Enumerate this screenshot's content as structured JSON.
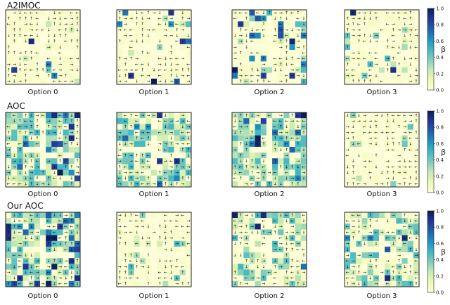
{
  "figure": {
    "rows": [
      {
        "title": "A2IMOC",
        "panels": [
          {
            "label": "Option 0",
            "seed": 11,
            "density": 0.05,
            "dark": 0.35
          },
          {
            "label": "Option 1",
            "seed": 23,
            "density": 0.1,
            "dark": 0.45
          },
          {
            "label": "Option 2",
            "seed": 37,
            "density": 0.2,
            "dark": 0.55
          },
          {
            "label": "Option 3",
            "seed": 41,
            "density": 0.08,
            "dark": 0.15
          }
        ]
      },
      {
        "title": "AOC",
        "panels": [
          {
            "label": "Option 0",
            "seed": 53,
            "density": 0.75,
            "dark": 0.15
          },
          {
            "label": "Option 1",
            "seed": 61,
            "density": 0.7,
            "dark": 0.05
          },
          {
            "label": "Option 2",
            "seed": 71,
            "density": 0.78,
            "dark": 0.1
          },
          {
            "label": "Option 3",
            "seed": 83,
            "density": 0.03,
            "dark": 0.0
          }
        ]
      },
      {
        "title": "Our AOC",
        "panels": [
          {
            "label": "Option 0",
            "seed": 97,
            "density": 0.7,
            "dark": 0.22
          },
          {
            "label": "Option 1",
            "seed": 101,
            "density": 0.15,
            "dark": 0.0
          },
          {
            "label": "Option 2",
            "seed": 113,
            "density": 0.45,
            "dark": 0.08
          },
          {
            "label": "Option 3",
            "seed": 127,
            "density": 0.5,
            "dark": 0.1
          }
        ]
      }
    ]
  },
  "colorbar": {
    "label": "β",
    "ticks": [
      "0.0",
      "0.2",
      "0.4",
      "0.6",
      "0.8",
      "1.0"
    ],
    "colors": [
      "#ffffd9",
      "#edf8b1",
      "#c7e9b4",
      "#7fcdbb",
      "#41b6c4",
      "#1d91c0",
      "#225ea8",
      "#253494",
      "#081d58"
    ]
  },
  "chart_data": {
    "type": "heatmap",
    "title": "",
    "rows": [
      "A2IMOC",
      "AOC",
      "Our AOC"
    ],
    "columns": [
      "Option 0",
      "Option 1",
      "Option 2",
      "Option 3"
    ],
    "value_label": "β",
    "value_range": [
      0.0,
      1.0
    ],
    "grid": "13x13 four-rooms gridworld, each cell shaded by termination probability β with an arrow for the option's action"
  }
}
